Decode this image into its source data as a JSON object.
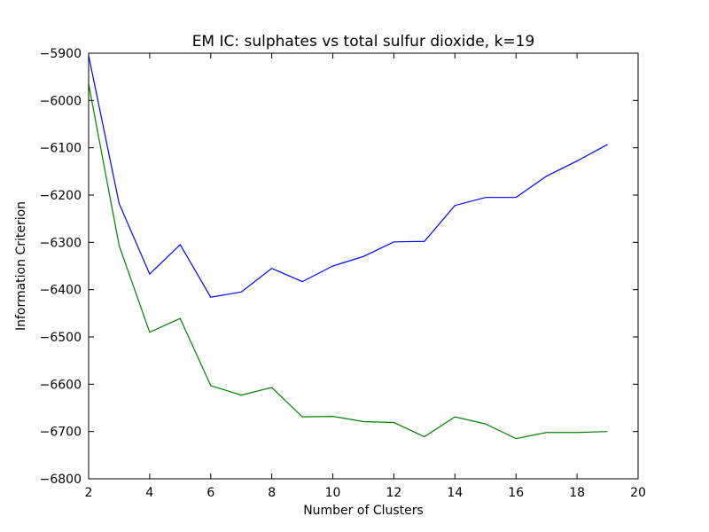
{
  "chart_data": {
    "type": "line",
    "title": "EM IC: sulphates vs total sulfur dioxide, k=19",
    "xlabel": "Number of Clusters",
    "ylabel": "Information Criterion",
    "xlim": [
      2,
      20
    ],
    "ylim": [
      -6800,
      -5900
    ],
    "xticks": [
      2,
      4,
      6,
      8,
      10,
      12,
      14,
      16,
      18,
      20
    ],
    "yticks": [
      -5900,
      -6000,
      -6100,
      -6200,
      -6300,
      -6400,
      -6500,
      -6600,
      -6700,
      -6800
    ],
    "ytick_labels": [
      "−5900",
      "−6000",
      "−6100",
      "−6200",
      "−6300",
      "−6400",
      "−6500",
      "−6600",
      "−6700",
      "−6800"
    ],
    "grid": false,
    "legend": "none",
    "x": [
      2,
      3,
      4,
      5,
      6,
      7,
      8,
      9,
      10,
      11,
      12,
      13,
      14,
      15,
      16,
      17,
      18,
      19
    ],
    "series": [
      {
        "color": "#0000ff",
        "values": [
          -5905,
          -6218,
          -6367,
          -6305,
          -6416,
          -6405,
          -6355,
          -6383,
          -6350,
          -6330,
          -6299,
          -6298,
          -6222,
          -6205,
          -6205,
          -6160,
          -6128,
          -6093
        ]
      },
      {
        "color": "#008000",
        "values": [
          -5965,
          -6307,
          -6490,
          -6461,
          -6603,
          -6623,
          -6607,
          -6669,
          -6668,
          -6679,
          -6681,
          -6711,
          -6669,
          -6684,
          -6715,
          -6702,
          -6702,
          -6700
        ]
      }
    ]
  }
}
